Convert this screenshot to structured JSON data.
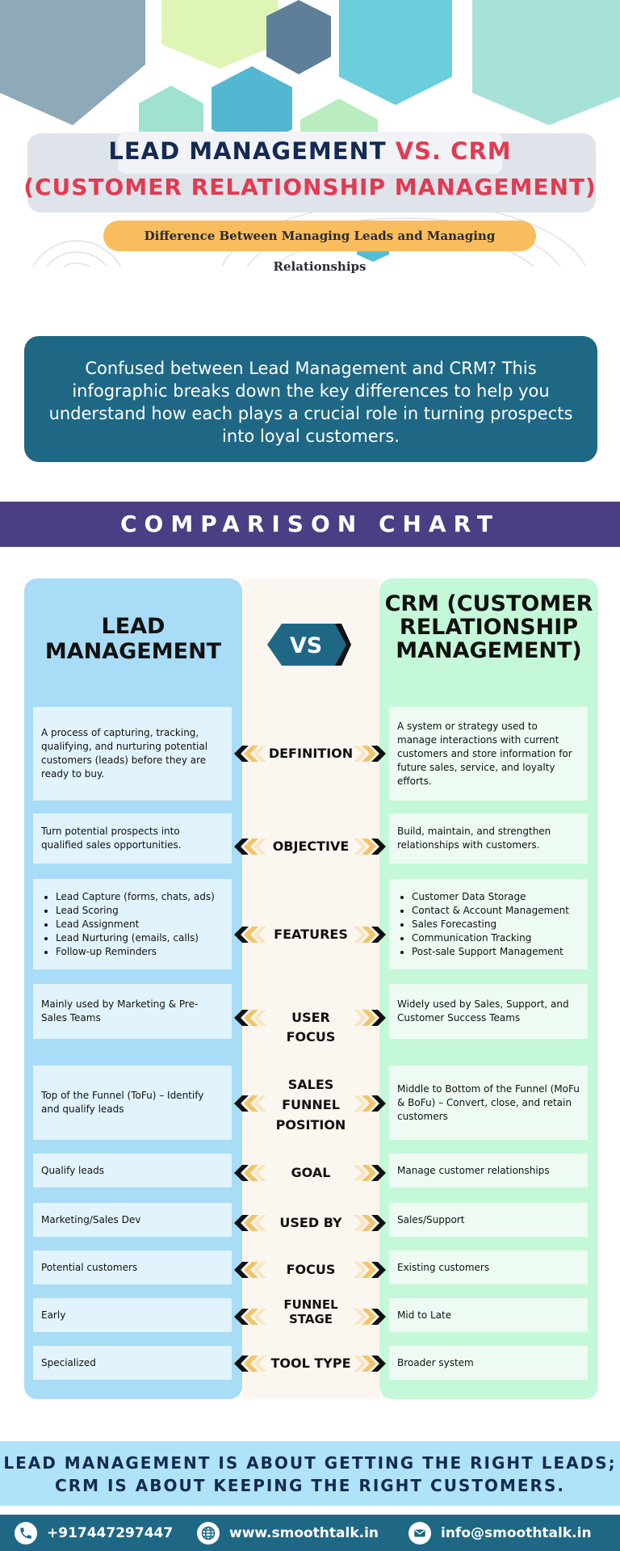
{
  "header": {
    "title_part1": "LEAD MANAGEMENT ",
    "title_vs": "VS.",
    "title_crm": " CRM",
    "title_line2": "(CUSTOMER RELATIONSHIP MANAGEMENT)",
    "subtitle": "Difference Between Managing Leads and Managing Relationships"
  },
  "intro": "Confused between Lead Management and CRM? This infographic breaks down the key differences to help you understand how each plays a crucial role in turning prospects into loyal customers.",
  "band_title": "COMPARISON CHART",
  "columns": {
    "left_heading": "LEAD MANAGEMENT",
    "vs": "VS",
    "right_heading": "CRM (CUSTOMER RELATIONSHIP MANAGEMENT)"
  },
  "rows": [
    {
      "label": "DEFINITION",
      "left": "A process of capturing, tracking, qualifying, and nurturing potential customers (leads) before they are ready to buy.",
      "right": "A system or strategy used to manage interactions with current customers and store information for future sales, service, and loyalty efforts."
    },
    {
      "label": "OBJECTIVE",
      "left": "Turn potential prospects into qualified sales opportunities.",
      "right": "Build, maintain, and strengthen relationships with customers."
    },
    {
      "label": "FEATURES",
      "left_list": [
        "Lead Capture (forms, chats, ads)",
        "Lead Scoring",
        "Lead Assignment",
        "Lead Nurturing (emails, calls)",
        "Follow-up Reminders"
      ],
      "right_list": [
        "Customer Data Storage",
        "Contact & Account Management",
        "Sales Forecasting",
        "Communication Tracking",
        "Post-sale Support Management"
      ]
    },
    {
      "label": "USER FOCUS",
      "left": "Mainly used by Marketing & Pre-Sales Teams",
      "right": "Widely used by Sales, Support, and Customer Success Teams"
    },
    {
      "label": "SALES FUNNEL POSITION",
      "left": "Top of the Funnel (ToFu) – Identify and qualify leads",
      "right": "Middle to Bottom of the Funnel (MoFu & BoFu) – Convert, close, and retain customers"
    },
    {
      "label": "GOAL",
      "left": "Qualify leads",
      "right": "Manage customer relationships"
    },
    {
      "label": "USED BY",
      "left": "Marketing/Sales Dev",
      "right": "Sales/Support"
    },
    {
      "label": "FOCUS",
      "left": "Potential customers",
      "right": "Existing customers"
    },
    {
      "label": "FUNNEL STAGE",
      "left": "Early",
      "right": "Mid to Late"
    },
    {
      "label": "TOOL TYPE",
      "left": "Specialized",
      "right": "Broader system"
    }
  ],
  "footer": {
    "quote": "LEAD MANAGEMENT IS ABOUT GETTING THE RIGHT LEADS; CRM IS ABOUT KEEPING THE RIGHT CUSTOMERS.",
    "phone": "+917447297447",
    "website": "www.smoothtalk.in",
    "email": "info@smoothtalk.in"
  },
  "icons": [
    "phone-icon",
    "globe-icon",
    "mail-icon",
    "chevron-left-icon",
    "chevron-right-icon"
  ],
  "colors": {
    "navy": "#142a52",
    "accent_red": "#e23a52",
    "teal": "#1f6885",
    "band_purple": "#4b3e84",
    "left_column": "#a9dcf6",
    "right_column": "#c4f8d8",
    "subtitle_yellow": "#f9bd5d",
    "quote_blue": "#aee3fa"
  }
}
